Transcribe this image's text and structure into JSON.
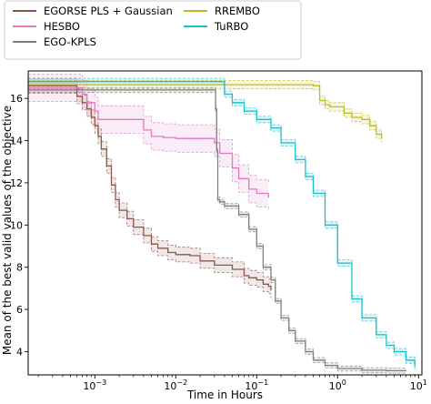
{
  "chart_data": {
    "type": "line",
    "title": "",
    "xlabel": "Time in Hours",
    "ylabel": "Mean of the best valid values of the objective",
    "x_scale": "log",
    "xlim": [
      0.00015,
      11
    ],
    "ylim": [
      2.9,
      17.3
    ],
    "x_ticks": [
      {
        "value": 0.001,
        "base": "10",
        "exp": "−3"
      },
      {
        "value": 0.01,
        "base": "10",
        "exp": "−2"
      },
      {
        "value": 0.1,
        "base": "10",
        "exp": "−1"
      },
      {
        "value": 1,
        "base": "10",
        "exp": "0"
      },
      {
        "value": 10,
        "base": "10",
        "exp": "1"
      }
    ],
    "y_ticks": [
      "4",
      "6",
      "8",
      "10",
      "12",
      "14",
      "16"
    ],
    "legend_position": "top",
    "series": [
      {
        "name": "EGORSE PLS + Gaussian",
        "color": "#8c564b",
        "x": [
          0.00015,
          0.0005,
          0.0006,
          0.0007,
          0.0008,
          0.0009,
          0.001,
          0.0011,
          0.0012,
          0.0014,
          0.0016,
          0.0018,
          0.002,
          0.0025,
          0.003,
          0.004,
          0.005,
          0.006,
          0.008,
          0.01,
          0.015,
          0.02,
          0.03,
          0.05,
          0.07,
          0.08,
          0.1,
          0.12,
          0.14,
          0.15
        ],
        "y": [
          16.6,
          16.6,
          16.1,
          15.8,
          15.5,
          15.1,
          14.7,
          14.2,
          13.6,
          12.8,
          11.9,
          11.2,
          10.7,
          10.3,
          9.9,
          9.5,
          9.1,
          8.9,
          8.7,
          8.6,
          8.55,
          8.3,
          8.1,
          7.9,
          7.6,
          7.5,
          7.4,
          7.2,
          7.1,
          6.9
        ],
        "band": 0.35
      },
      {
        "name": "HESBO",
        "color": "#e377c2",
        "x": [
          0.00015,
          0.00055,
          0.0007,
          0.0008,
          0.001,
          0.0011,
          0.003,
          0.004,
          0.005,
          0.007,
          0.01,
          0.03,
          0.035,
          0.05,
          0.06,
          0.08,
          0.1,
          0.14
        ],
        "y": [
          16.5,
          16.5,
          16.2,
          15.8,
          15.4,
          15.0,
          15.0,
          14.5,
          14.2,
          14.15,
          14.1,
          13.9,
          13.4,
          12.7,
          12.2,
          11.7,
          11.5,
          11.3
        ],
        "band": 0.65
      },
      {
        "name": "EGO-KPLS",
        "color": "#7f7f7f",
        "x": [
          0.00015,
          0.03,
          0.031,
          0.032,
          0.033,
          0.035,
          0.04,
          0.06,
          0.08,
          0.1,
          0.12,
          0.15,
          0.17,
          0.2,
          0.25,
          0.3,
          0.4,
          0.5,
          0.7,
          1,
          2,
          4,
          7
        ],
        "y": [
          16.4,
          16.4,
          15.5,
          13.5,
          11.2,
          11.1,
          10.9,
          10.5,
          9.8,
          9.0,
          8.0,
          7.4,
          6.4,
          5.6,
          5.0,
          4.5,
          4.0,
          3.6,
          3.35,
          3.2,
          3.12,
          3.1,
          3.08
        ],
        "band": 0.12
      },
      {
        "name": "RREMBO",
        "color": "#bcbd22",
        "x": [
          0.00015,
          0.1,
          0.5,
          0.6,
          0.7,
          0.8,
          1.0,
          1.2,
          1.5,
          2.0,
          2.5,
          3.0,
          3.5
        ],
        "y": [
          16.65,
          16.65,
          16.6,
          15.9,
          15.7,
          15.6,
          15.6,
          15.3,
          15.1,
          15.0,
          14.7,
          14.3,
          14.1
        ],
        "band": 0.2
      },
      {
        "name": "TuRBO",
        "color": "#17becf",
        "x": [
          0.00015,
          0.03,
          0.04,
          0.05,
          0.07,
          0.1,
          0.15,
          0.2,
          0.3,
          0.4,
          0.5,
          0.7,
          1.0,
          1.5,
          2.0,
          3.0,
          4.0,
          5.0,
          7.0,
          9.0
        ],
        "y": [
          16.8,
          16.8,
          16.2,
          15.8,
          15.4,
          15.0,
          14.6,
          13.9,
          13.1,
          12.3,
          11.5,
          10.0,
          8.2,
          6.5,
          5.6,
          4.8,
          4.3,
          4.0,
          3.6,
          3.3
        ],
        "band": 0.15
      }
    ]
  }
}
